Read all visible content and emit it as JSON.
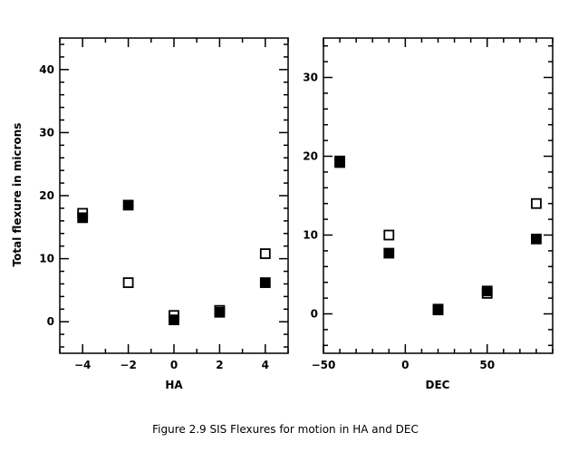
{
  "caption": "Figure 2.9 SIS Flexures for motion in HA and DEC",
  "chart_data": [
    {
      "type": "scatter",
      "xlabel": "HA",
      "ylabel": "Total flexure in microns",
      "xlim": [
        -5,
        5
      ],
      "ylim": [
        -5,
        45
      ],
      "xticks": [
        -4,
        -2,
        0,
        2,
        4
      ],
      "yticks": [
        0,
        10,
        20,
        30,
        40
      ],
      "series": [
        {
          "marker": "filled-square",
          "color": "#000000",
          "points": [
            [
              -4,
              16.5
            ],
            [
              -2,
              18.5
            ],
            [
              0,
              0.3
            ],
            [
              2,
              1.5
            ],
            [
              4,
              6.2
            ]
          ]
        },
        {
          "marker": "open-square",
          "color": "#000000",
          "points": [
            [
              -4,
              17.2
            ],
            [
              -2,
              6.2
            ],
            [
              0,
              1.0
            ],
            [
              2,
              1.8
            ],
            [
              4,
              10.8
            ]
          ]
        }
      ]
    },
    {
      "type": "scatter",
      "xlabel": "DEC",
      "ylabel": "",
      "xlim": [
        -50,
        90
      ],
      "ylim": [
        -5,
        35
      ],
      "xticks": [
        -50,
        0,
        50
      ],
      "yticks": [
        0,
        10,
        20,
        30
      ],
      "series": [
        {
          "marker": "filled-square",
          "color": "#000000",
          "points": [
            [
              -40,
              19.2
            ],
            [
              -10,
              7.7
            ],
            [
              20,
              0.5
            ],
            [
              50,
              2.9
            ],
            [
              80,
              9.5
            ]
          ]
        },
        {
          "marker": "open-square",
          "color": "#000000",
          "points": [
            [
              -40,
              19.4
            ],
            [
              -10,
              10.0
            ],
            [
              20,
              0.6
            ],
            [
              50,
              2.6
            ],
            [
              80,
              14.0
            ]
          ]
        }
      ]
    }
  ]
}
